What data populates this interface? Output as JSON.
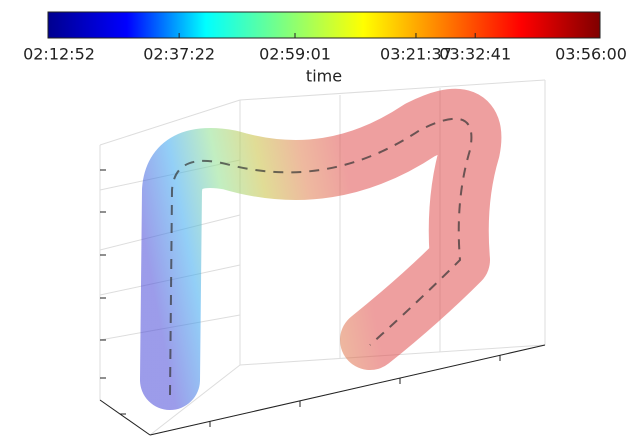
{
  "chart_data": {
    "type": "colorbar3d",
    "colorbar_label": "time",
    "clim": [
      7972,
      14160
    ],
    "cticks": [
      {
        "value": 7972,
        "label": "02:12:52"
      },
      {
        "value": 9442,
        "label": "02:37:22"
      },
      {
        "value": 10741,
        "label": "02:59:01"
      },
      {
        "value": 12097,
        "label": "03:21:37"
      },
      {
        "value": 12761,
        "label": "03:32:41"
      },
      {
        "value": 14160,
        "label": "03:56:00"
      }
    ],
    "colormap": [
      "#00008f",
      "#0000ff",
      "#00ffff",
      "#7fff7f",
      "#ffff00",
      "#ff7f00",
      "#ff0000",
      "#800000"
    ]
  }
}
